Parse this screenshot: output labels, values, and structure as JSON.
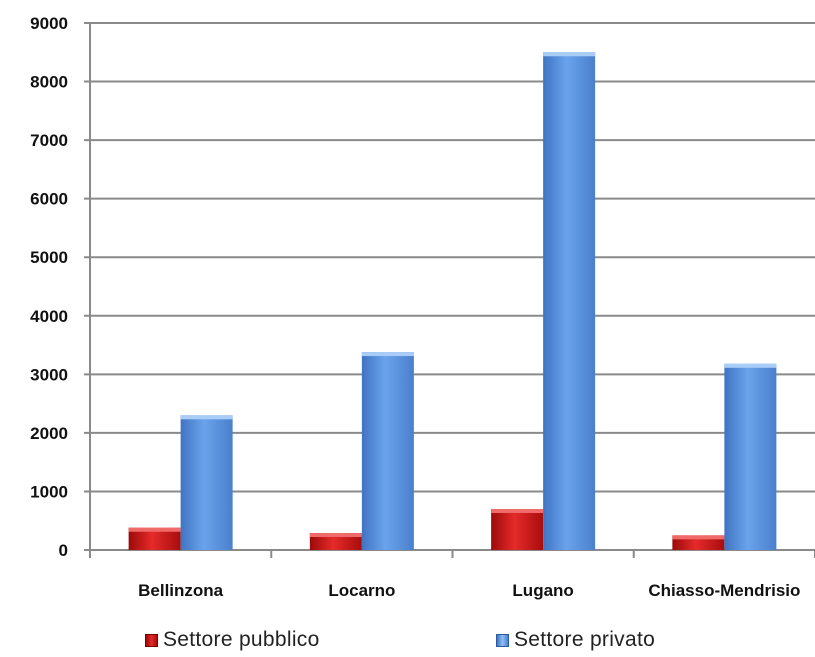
{
  "chart_data": {
    "type": "bar",
    "categories": [
      "Bellinzona",
      "Locarno",
      "Lugano",
      "Chiasso-Mendrisio"
    ],
    "series": [
      {
        "name": "Settore pubblico",
        "values": [
          380,
          290,
          700,
          250
        ],
        "color": "#d41e1e"
      },
      {
        "name": "Settore privato",
        "values": [
          2300,
          3380,
          8500,
          3180
        ],
        "color": "#5b93de"
      }
    ],
    "yticks": [
      0,
      1000,
      2000,
      3000,
      4000,
      5000,
      6000,
      7000,
      8000,
      9000
    ],
    "ylim": [
      0,
      9000
    ],
    "grid": true,
    "legend_position": "bottom"
  }
}
